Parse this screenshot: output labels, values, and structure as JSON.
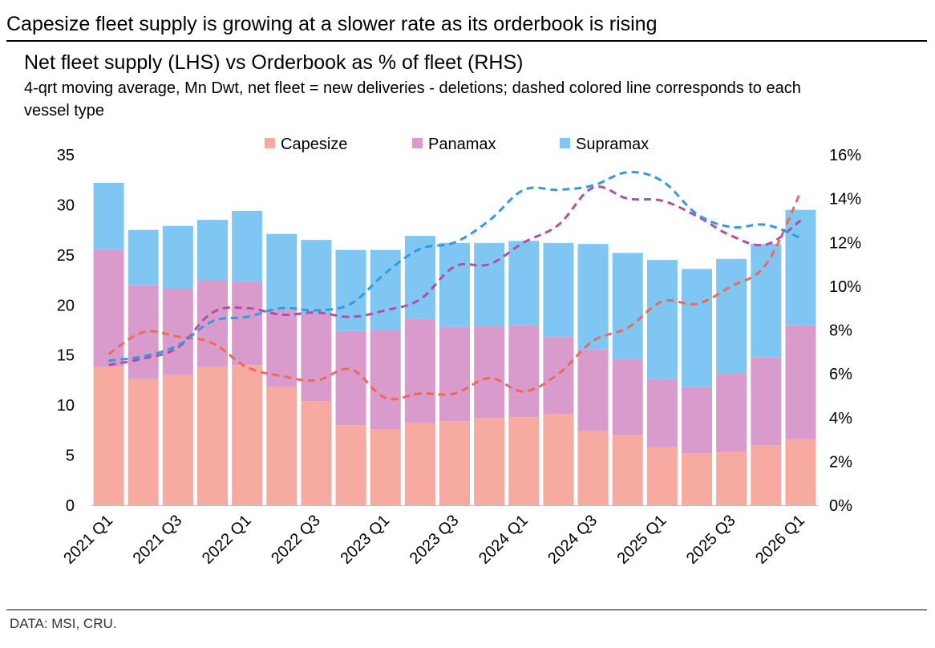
{
  "header": {
    "headline": "Capesize fleet supply is growing at a slower rate as its orderbook is rising"
  },
  "footer": {
    "source": "DATA: MSI, CRU."
  },
  "colors": {
    "capesize": "#f6aaa0",
    "panamax": "#d99bcb",
    "supramax": "#80c6f2",
    "capesize_line": "#ec6a56",
    "panamax_line": "#b54ea3",
    "supramax_line": "#2f9be4"
  },
  "chart_data": {
    "type": "bar",
    "stacked": true,
    "title": "Net fleet supply (LHS) vs Orderbook as % of fleet (RHS)",
    "subtitle": "4-qrt moving average, Mn Dwt, net fleet = new deliveries - deletions; dashed colored line corresponds to each vessel type",
    "categories": [
      "2021 Q1",
      "2021 Q2",
      "2021 Q3",
      "2021 Q4",
      "2022 Q1",
      "2022 Q2",
      "2022 Q3",
      "2022 Q4",
      "2023 Q1",
      "2023 Q2",
      "2023 Q3",
      "2023 Q4",
      "2024 Q1",
      "2024 Q2",
      "2024 Q3",
      "2024 Q4",
      "2025 Q1",
      "2025 Q2",
      "2025 Q3",
      "2025 Q4",
      "2026 Q1"
    ],
    "tick_labels": [
      "2021 Q1",
      "",
      "2021 Q3",
      "",
      "2022 Q1",
      "",
      "2022 Q3",
      "",
      "2023 Q1",
      "",
      "2023 Q3",
      "",
      "2024 Q1",
      "",
      "2024 Q3",
      "",
      "2025 Q1",
      "",
      "2025 Q3",
      "",
      "2026 Q1"
    ],
    "legend": [
      "Capesize",
      "Panamax",
      "Supramax"
    ],
    "legend_position": "top",
    "grid": false,
    "left_axis": {
      "min": 0,
      "max": 35,
      "ticks": [
        "0",
        "5",
        "10",
        "15",
        "20",
        "25",
        "30",
        "35"
      ]
    },
    "right_axis": {
      "min": 0,
      "max": 16,
      "ticks": [
        "0%",
        "2%",
        "4%",
        "6%",
        "8%",
        "10%",
        "12%",
        "14%",
        "16%"
      ]
    },
    "series": [
      {
        "name": "Capesize",
        "type": "bar",
        "axis": "left",
        "values": [
          13.8,
          12.6,
          13.0,
          13.8,
          14.0,
          11.8,
          10.4,
          8.0,
          7.6,
          8.2,
          8.4,
          8.7,
          8.8,
          9.1,
          7.4,
          7.0,
          5.8,
          5.2,
          5.3,
          6.0,
          6.6
        ]
      },
      {
        "name": "Panamax",
        "type": "bar",
        "axis": "left",
        "values": [
          11.7,
          9.4,
          8.7,
          8.7,
          8.3,
          7.7,
          8.7,
          9.4,
          9.9,
          10.4,
          9.4,
          9.2,
          9.2,
          7.7,
          8.2,
          7.6,
          6.8,
          6.6,
          7.9,
          8.8,
          11.4
        ]
      },
      {
        "name": "Supramax",
        "type": "bar",
        "axis": "left",
        "values": [
          6.7,
          5.5,
          6.2,
          6.0,
          7.1,
          7.6,
          7.4,
          8.1,
          8.0,
          8.3,
          8.4,
          8.3,
          8.4,
          9.4,
          10.5,
          10.6,
          11.9,
          11.8,
          11.4,
          11.3,
          11.5
        ]
      },
      {
        "type": "line",
        "dashed": true,
        "color_of": "Capesize",
        "axis": "right",
        "values": [
          6.9,
          7.9,
          7.7,
          7.4,
          6.3,
          5.9,
          5.7,
          6.2,
          4.9,
          5.1,
          5.1,
          5.8,
          5.2,
          6.0,
          7.5,
          8.1,
          9.3,
          9.2,
          10.0,
          11.0,
          14.3
        ]
      },
      {
        "type": "line",
        "dashed": true,
        "color_of": "Panamax",
        "axis": "right",
        "values": [
          6.4,
          6.7,
          7.2,
          8.8,
          9.0,
          8.7,
          8.8,
          8.6,
          8.9,
          9.4,
          10.9,
          11.0,
          12.0,
          12.8,
          14.5,
          14.0,
          13.9,
          13.2,
          12.3,
          11.9,
          13.0
        ]
      },
      {
        "type": "line",
        "dashed": true,
        "color_of": "Supramax",
        "axis": "right",
        "values": [
          6.6,
          6.8,
          7.3,
          8.4,
          8.6,
          9.0,
          8.9,
          9.2,
          10.6,
          11.7,
          12.0,
          13.0,
          14.4,
          14.4,
          14.6,
          15.2,
          14.8,
          13.3,
          12.7,
          12.8,
          12.2
        ]
      }
    ]
  }
}
